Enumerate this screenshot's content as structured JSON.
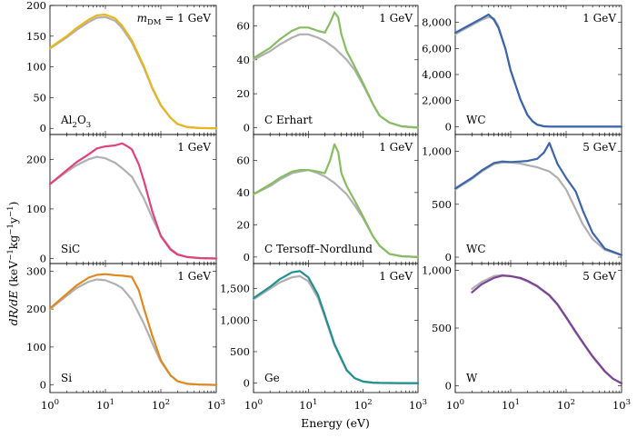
{
  "figure": {
    "ylabel_parts": [
      "dR/dE",
      " (keV",
      "−1",
      "kg",
      "−1",
      "y",
      "−1",
      ")"
    ],
    "xlabel": "Energy (eV)",
    "x_tick_labels": [
      {
        "base": "10",
        "exp": "0"
      },
      {
        "base": "10",
        "exp": "1"
      },
      {
        "base": "10",
        "exp": "2"
      },
      {
        "base": "10",
        "exp": "3"
      }
    ]
  },
  "colors": {
    "reference": "#b0b0b0",
    "Al2O3": "#e8b51c",
    "SiC": "#e0427e",
    "Si": "#e0881e",
    "C": "#86bd62",
    "Ge": "#1f8f94",
    "WC": "#3b64ab",
    "W": "#7b429a"
  },
  "chart_data": [
    {
      "type": "line",
      "material": "Al2O3",
      "mass": "1 GeV",
      "mass_prefix": "m",
      "mass_sub": "DM",
      "mass_eq": " = 1 GeV",
      "material_parts": [
        "Al",
        "2",
        "O",
        "3"
      ],
      "xlim": [
        1,
        1000
      ],
      "xscale": "log",
      "ylim": [
        -10,
        200
      ],
      "yticks": [
        0,
        50,
        100,
        150,
        200
      ],
      "ytick_labels": [
        "0",
        "50",
        "100",
        "150",
        "200"
      ],
      "series": [
        {
          "role": "reference",
          "color": "#b0b0b0",
          "x": [
            1,
            2,
            3,
            5,
            7,
            10,
            15,
            20,
            30,
            50,
            70,
            100,
            150,
            200,
            300,
            500,
            1000
          ],
          "y": [
            130,
            148,
            160,
            173,
            180,
            181,
            175,
            163,
            140,
            98,
            65,
            37,
            17,
            7,
            2,
            0.5,
            0
          ]
        },
        {
          "role": "material",
          "color": "#e8b51c",
          "x": [
            1,
            2,
            3,
            5,
            7,
            10,
            15,
            20,
            30,
            50,
            70,
            100,
            150,
            200,
            300,
            500,
            1000
          ],
          "y": [
            131,
            150,
            163,
            177,
            184,
            185,
            179,
            167,
            143,
            100,
            66,
            38,
            17,
            7,
            2,
            0.5,
            0
          ]
        }
      ]
    },
    {
      "type": "line",
      "material": "C Erhart",
      "mass": "1 GeV",
      "xlim": [
        1,
        1000
      ],
      "xscale": "log",
      "ylim": [
        -4,
        72
      ],
      "yticks": [
        0,
        20,
        40,
        60
      ],
      "ytick_labels": [
        "0",
        "20",
        "40",
        "60"
      ],
      "series": [
        {
          "role": "reference",
          "color": "#b0b0b0",
          "x": [
            1,
            2,
            3,
            5,
            7,
            10,
            15,
            20,
            30,
            50,
            70,
            100,
            150,
            200,
            300,
            500,
            1000
          ],
          "y": [
            40,
            45,
            49,
            53,
            55,
            55,
            53,
            51,
            47,
            40,
            34,
            25,
            14,
            7,
            3,
            0.8,
            0
          ]
        },
        {
          "role": "material",
          "color": "#86bd62",
          "x": [
            1,
            2,
            3,
            5,
            7,
            10,
            15,
            20,
            25,
            30,
            35,
            40,
            50,
            70,
            100,
            150,
            200,
            300,
            500,
            1000
          ],
          "y": [
            41,
            47,
            52,
            57,
            59,
            59,
            57,
            56,
            62,
            68,
            65,
            55,
            45,
            36,
            26,
            14,
            7,
            3,
            0.8,
            0
          ]
        }
      ]
    },
    {
      "type": "line",
      "material": "WC",
      "mass": "1 GeV",
      "xlim": [
        1,
        1000
      ],
      "xscale": "log",
      "ylim": [
        -600,
        9300
      ],
      "yticks": [
        0,
        2000,
        4000,
        6000,
        8000
      ],
      "ytick_labels": [
        "0",
        "2,000",
        "4,000",
        "6,000",
        "8,000"
      ],
      "series": [
        {
          "role": "reference",
          "color": "#b0b0b0",
          "x": [
            1,
            2,
            3,
            4,
            5,
            6,
            8,
            10,
            15,
            20,
            25,
            30,
            40,
            50,
            70,
            100,
            1000
          ],
          "y": [
            7100,
            7800,
            8200,
            8400,
            8300,
            7700,
            6000,
            4300,
            2100,
            900,
            400,
            150,
            30,
            5,
            0,
            0,
            0
          ]
        },
        {
          "role": "material",
          "color": "#3b64ab",
          "x": [
            1,
            2,
            3,
            4,
            5,
            6,
            8,
            10,
            15,
            20,
            25,
            30,
            40,
            50,
            70,
            100,
            1000
          ],
          "y": [
            7200,
            7900,
            8300,
            8600,
            8200,
            7600,
            6000,
            4300,
            2100,
            900,
            400,
            150,
            30,
            5,
            0,
            0,
            0
          ]
        }
      ]
    },
    {
      "type": "line",
      "material": "SiC",
      "mass": "1 GeV",
      "xlim": [
        1,
        1000
      ],
      "xscale": "log",
      "ylim": [
        -10,
        250
      ],
      "yticks": [
        0,
        100,
        200
      ],
      "ytick_labels": [
        "0",
        "100",
        "200"
      ],
      "series": [
        {
          "role": "reference",
          "color": "#b0b0b0",
          "x": [
            1,
            2,
            3,
            5,
            7,
            10,
            15,
            20,
            30,
            50,
            70,
            100,
            150,
            200,
            300,
            500,
            1000
          ],
          "y": [
            150,
            175,
            188,
            200,
            205,
            202,
            193,
            182,
            165,
            120,
            82,
            47,
            20,
            9,
            3,
            1,
            0
          ]
        },
        {
          "role": "material",
          "color": "#e0427e",
          "x": [
            1,
            2,
            3,
            5,
            7,
            10,
            15,
            20,
            25,
            30,
            40,
            50,
            70,
            100,
            150,
            200,
            300,
            500,
            1000
          ],
          "y": [
            150,
            178,
            194,
            210,
            222,
            226,
            228,
            232,
            226,
            220,
            190,
            155,
            95,
            45,
            18,
            8,
            3,
            1,
            0
          ]
        }
      ]
    },
    {
      "type": "line",
      "material": "C Tersoff–Nordlund",
      "mass": "1 GeV",
      "xlim": [
        1,
        1000
      ],
      "xscale": "log",
      "ylim": [
        -4,
        76
      ],
      "yticks": [
        0,
        20,
        40,
        60
      ],
      "ytick_labels": [
        "0",
        "20",
        "40",
        "60"
      ],
      "series": [
        {
          "role": "reference",
          "color": "#b0b0b0",
          "x": [
            1,
            2,
            3,
            5,
            7,
            10,
            15,
            20,
            30,
            50,
            70,
            100,
            150,
            200,
            300,
            500,
            1000
          ],
          "y": [
            39,
            44,
            48,
            52,
            53,
            54,
            52,
            50,
            46,
            39,
            32,
            24,
            13,
            7,
            2,
            0.5,
            0
          ]
        },
        {
          "role": "material",
          "color": "#86bd62",
          "x": [
            1,
            2,
            3,
            5,
            7,
            10,
            15,
            20,
            25,
            30,
            35,
            40,
            50,
            70,
            100,
            150,
            200,
            300,
            500,
            1000
          ],
          "y": [
            39,
            45,
            49,
            53,
            54,
            54,
            53,
            52,
            60,
            70,
            65,
            52,
            44,
            35,
            25,
            13,
            7,
            2,
            0.5,
            0
          ]
        }
      ]
    },
    {
      "type": "line",
      "material": "WC",
      "mass": "5 GeV",
      "xlim": [
        1,
        1000
      ],
      "xscale": "log",
      "ylim": [
        -60,
        1160
      ],
      "yticks": [
        0,
        500,
        1000
      ],
      "ytick_labels": [
        "0",
        "500",
        "1,000"
      ],
      "series": [
        {
          "role": "reference",
          "color": "#b0b0b0",
          "x": [
            1,
            2,
            3,
            5,
            7,
            10,
            15,
            20,
            30,
            50,
            70,
            100,
            150,
            200,
            300,
            500,
            1000
          ],
          "y": [
            640,
            740,
            810,
            880,
            895,
            895,
            885,
            870,
            850,
            810,
            750,
            640,
            450,
            310,
            170,
            70,
            20
          ]
        },
        {
          "role": "material",
          "color": "#3b64ab",
          "x": [
            1,
            2,
            3,
            5,
            7,
            10,
            15,
            20,
            30,
            40,
            50,
            60,
            70,
            100,
            150,
            200,
            300,
            500,
            1000
          ],
          "y": [
            650,
            750,
            820,
            890,
            905,
            900,
            905,
            910,
            930,
            990,
            1080,
            970,
            880,
            750,
            620,
            440,
            230,
            80,
            20
          ]
        }
      ]
    },
    {
      "type": "line",
      "material": "Si",
      "mass": "1 GeV",
      "xlim": [
        1,
        1000
      ],
      "xscale": "log",
      "ylim": [
        -20,
        320
      ],
      "yticks": [
        0,
        100,
        200,
        300
      ],
      "ytick_labels": [
        "0",
        "100",
        "200",
        "300"
      ],
      "series": [
        {
          "role": "reference",
          "color": "#b0b0b0",
          "x": [
            1,
            2,
            3,
            5,
            7,
            10,
            15,
            20,
            30,
            50,
            70,
            100,
            150,
            200,
            300,
            500,
            1000
          ],
          "y": [
            200,
            235,
            255,
            272,
            278,
            276,
            266,
            255,
            225,
            160,
            110,
            62,
            25,
            10,
            3,
            1,
            0
          ]
        },
        {
          "role": "material",
          "color": "#e0881e",
          "x": [
            1,
            2,
            3,
            5,
            7,
            10,
            15,
            20,
            30,
            40,
            50,
            70,
            100,
            150,
            200,
            300,
            500,
            1000
          ],
          "y": [
            202,
            240,
            262,
            283,
            290,
            292,
            289,
            288,
            285,
            250,
            200,
            130,
            65,
            25,
            10,
            3,
            1,
            0
          ]
        }
      ]
    },
    {
      "type": "line",
      "material": "Ge",
      "mass": "1 GeV",
      "xlim": [
        1,
        1000
      ],
      "xscale": "log",
      "ylim": [
        -150,
        1900
      ],
      "yticks": [
        0,
        500,
        1000,
        1500
      ],
      "ytick_labels": [
        "0",
        "500",
        "1,000",
        "1,500"
      ],
      "series": [
        {
          "role": "reference",
          "color": "#b0b0b0",
          "x": [
            1,
            2,
            3,
            5,
            7,
            10,
            15,
            20,
            30,
            50,
            70,
            100,
            150,
            200,
            300,
            500,
            1000
          ],
          "y": [
            1330,
            1500,
            1600,
            1680,
            1700,
            1620,
            1350,
            1050,
            600,
            200,
            80,
            25,
            8,
            3,
            1,
            0,
            0
          ]
        },
        {
          "role": "material",
          "color": "#1f8f94",
          "x": [
            1,
            2,
            3,
            5,
            7,
            10,
            15,
            20,
            30,
            50,
            70,
            100,
            150,
            200,
            300,
            500,
            1000
          ],
          "y": [
            1350,
            1530,
            1650,
            1760,
            1780,
            1680,
            1400,
            1080,
            620,
            210,
            80,
            25,
            8,
            3,
            1,
            0,
            0
          ]
        }
      ]
    },
    {
      "type": "line",
      "material": "W",
      "mass": "5 GeV",
      "xlim": [
        1,
        1000
      ],
      "xscale": "log",
      "ylim": [
        -60,
        1060
      ],
      "yticks": [
        0,
        500,
        1000
      ],
      "ytick_labels": [
        "0",
        "500",
        "1,000"
      ],
      "series": [
        {
          "role": "reference",
          "color": "#b0b0b0",
          "x": [
            2,
            3,
            5,
            7,
            10,
            15,
            20,
            30,
            50,
            70,
            100,
            150,
            200,
            300,
            500,
            700,
            1000
          ],
          "y": [
            840,
            900,
            950,
            960,
            950,
            930,
            905,
            860,
            780,
            700,
            590,
            460,
            370,
            250,
            120,
            60,
            20
          ]
        },
        {
          "role": "material",
          "color": "#7b429a",
          "x": [
            2,
            3,
            5,
            7,
            10,
            15,
            20,
            30,
            50,
            70,
            100,
            150,
            200,
            300,
            500,
            700,
            1000
          ],
          "y": [
            810,
            880,
            935,
            955,
            950,
            935,
            910,
            865,
            785,
            705,
            595,
            465,
            375,
            255,
            125,
            60,
            20
          ]
        }
      ]
    }
  ]
}
